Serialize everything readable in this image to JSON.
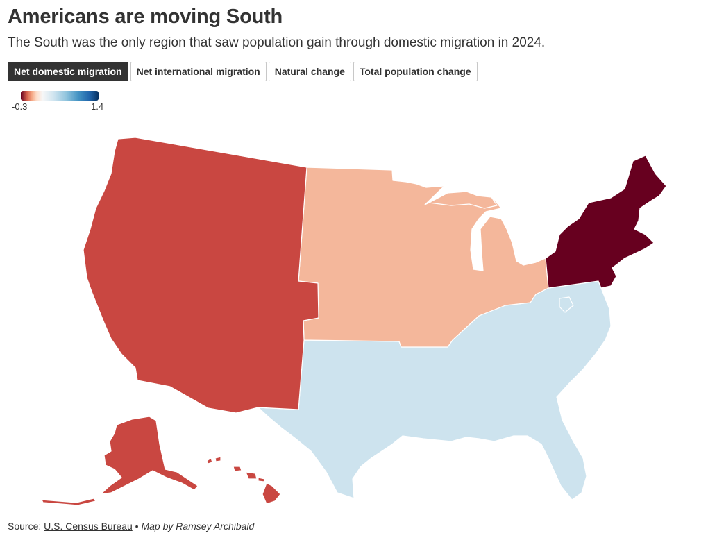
{
  "title": "Americans are moving South",
  "subtitle": "The South was the only region that saw population gain through domestic migration in 2024.",
  "tabs": [
    {
      "label": "Net domestic migration",
      "active": true
    },
    {
      "label": "Net international migration",
      "active": false
    },
    {
      "label": "Natural change",
      "active": false
    },
    {
      "label": "Total population change",
      "active": false
    }
  ],
  "legend": {
    "min": "-0.3",
    "max": "1.4"
  },
  "regions": {
    "west": {
      "color": "#c94741"
    },
    "midwest": {
      "color": "#f4b79b"
    },
    "northeast": {
      "color": "#67001f"
    },
    "south": {
      "color": "#cde3ee"
    }
  },
  "source": {
    "label": "Source:",
    "link_text": "U.S. Census Bureau",
    "separator": "•",
    "credit": "Map by Ramsey Archibald"
  }
}
